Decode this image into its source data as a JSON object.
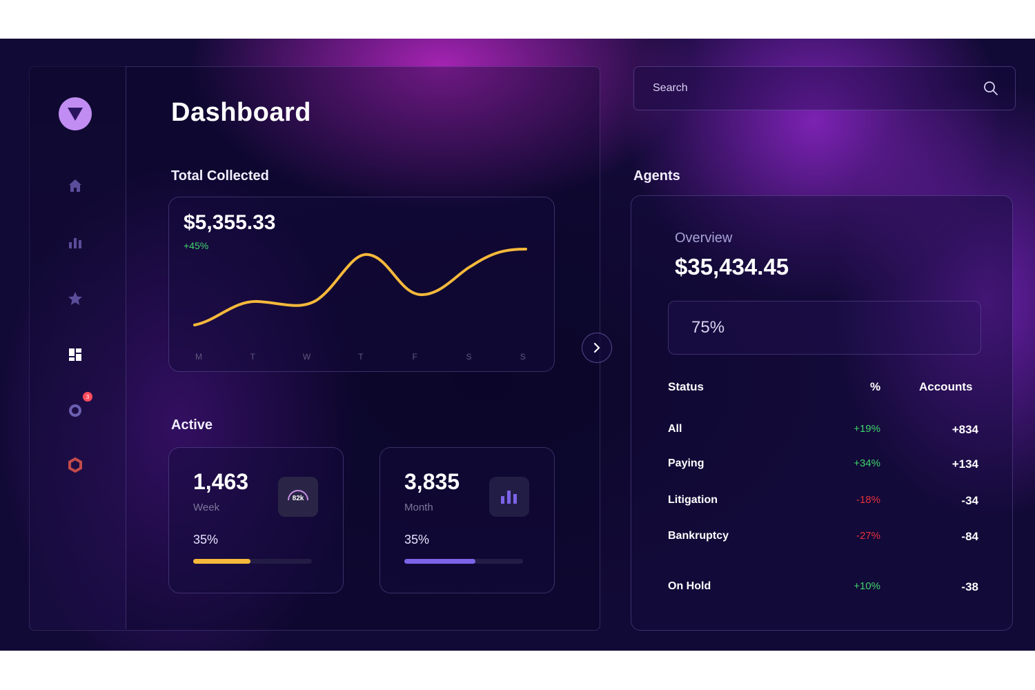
{
  "header": {
    "title": "Dashboard"
  },
  "search": {
    "placeholder": "Search"
  },
  "total_collected": {
    "label": "Total Collected",
    "amount": "$5,355.33",
    "change": "+45%",
    "days": [
      "M",
      "T",
      "W",
      "T",
      "F",
      "S",
      "S"
    ]
  },
  "active": {
    "label": "Active",
    "cards": [
      {
        "value": "1,463",
        "period": "Week",
        "percent_label": "35%",
        "progress": 0.48,
        "color": "#f6b93b",
        "badge": "82k"
      },
      {
        "value": "3,835",
        "period": "Month",
        "percent_label": "35%",
        "progress": 0.6,
        "color": "#7c63e8"
      }
    ]
  },
  "agents": {
    "label": "Agents",
    "overview_label": "Overview",
    "overview_amount": "$35,434.45",
    "percent": "75%",
    "headers": {
      "status": "Status",
      "percent": "%",
      "accounts": "Accounts"
    },
    "rows": [
      {
        "status": "All",
        "percent": "+19%",
        "accounts": "+834",
        "tone": "#3fd46b"
      },
      {
        "status": "Paying",
        "percent": "+34%",
        "accounts": "+134",
        "tone": "#3fd46b"
      },
      {
        "status": "Litigation",
        "percent": "-18%",
        "accounts": "-34",
        "tone": "#e5303c"
      },
      {
        "status": "Bankruptcy",
        "percent": "-27%",
        "accounts": "-84",
        "tone": "#e5303c"
      },
      {
        "status": "On Hold",
        "percent": "+10%",
        "accounts": "-38",
        "tone": "#3fd46b"
      }
    ]
  },
  "sidebar": {
    "icons": [
      "home-icon",
      "bar-chart-icon",
      "star-icon",
      "dashboard-icon",
      "ring-icon",
      "hexagon-icon"
    ],
    "notification_count": "3"
  },
  "colors": {
    "accent": "#c18df2",
    "line": "#f6b93b",
    "positive": "#3fd46b",
    "negative": "#e5303c"
  }
}
